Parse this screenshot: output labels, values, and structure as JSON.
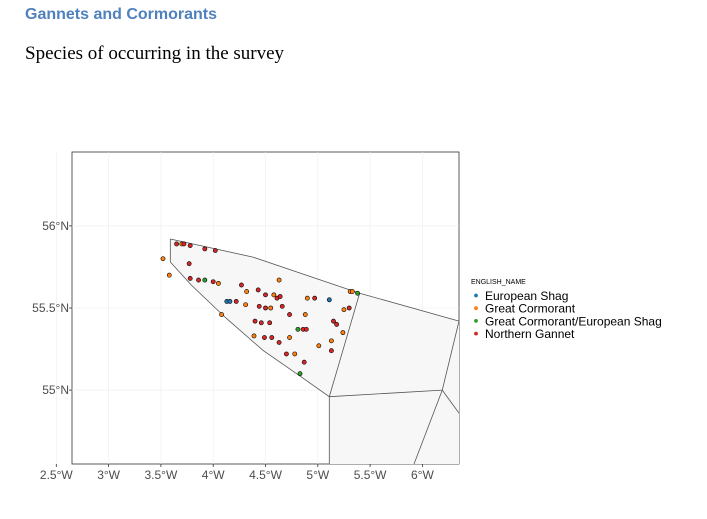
{
  "heading": "Gannets and Cormorants",
  "subheading": "Species of occurring in the survey",
  "chart_data": {
    "type": "scatter",
    "title": "",
    "xlabel": "",
    "ylabel": "",
    "grid": true,
    "xlim": [
      -2.65,
      -6.35
    ],
    "ylim": [
      54.55,
      56.45
    ],
    "x_ticks": [
      {
        "value": -2.5,
        "label": "2.5°W"
      },
      {
        "value": -3.0,
        "label": "3°W"
      },
      {
        "value": -3.5,
        "label": "3.5°W"
      },
      {
        "value": -4.0,
        "label": "4°W"
      },
      {
        "value": -4.5,
        "label": "4.5°W"
      },
      {
        "value": -5.0,
        "label": "5°W"
      },
      {
        "value": -5.5,
        "label": "5.5°W"
      },
      {
        "value": -6.0,
        "label": "6°W"
      }
    ],
    "y_ticks": [
      {
        "value": 56.0,
        "label": "56°N"
      },
      {
        "value": 55.5,
        "label": "55.5°N"
      },
      {
        "value": 55.0,
        "label": "55°N"
      }
    ],
    "polygons": [
      [
        [
          -3.59,
          55.92
        ],
        [
          -4.38,
          55.81
        ],
        [
          -5.4,
          55.59
        ],
        [
          -6.35,
          55.42
        ]
      ],
      [
        [
          -3.59,
          55.92
        ],
        [
          -3.59,
          55.78
        ],
        [
          -3.79,
          55.64
        ],
        [
          -4.12,
          55.44
        ],
        [
          -4.48,
          55.24
        ],
        [
          -4.82,
          55.09
        ],
        [
          -5.11,
          54.96
        ],
        [
          -5.4,
          55.59
        ]
      ],
      [
        [
          -5.11,
          54.96
        ],
        [
          -6.19,
          55.0
        ],
        [
          -6.35,
          55.42
        ]
      ],
      [
        [
          -5.11,
          54.96
        ],
        [
          -5.11,
          54.55
        ]
      ],
      [
        [
          -6.19,
          55.0
        ],
        [
          -5.92,
          54.55
        ]
      ],
      [
        [
          -6.19,
          55.0
        ],
        [
          -6.35,
          54.86
        ]
      ]
    ],
    "legend": {
      "title": "ENGLISH_NAME",
      "position": "right",
      "entries": [
        {
          "name": "European Shag",
          "color": "#1f78b4"
        },
        {
          "name": "Great Cormorant",
          "color": "#ff7f0e"
        },
        {
          "name": "Great Cormorant/European Shag",
          "color": "#2ca02c"
        },
        {
          "name": "Northern Gannet",
          "color": "#d62728"
        }
      ]
    },
    "series": [
      {
        "name": "European Shag",
        "color": "#1f78b4",
        "points": [
          {
            "x": -4.13,
            "y": 55.54
          },
          {
            "x": -4.16,
            "y": 55.54
          },
          {
            "x": -5.11,
            "y": 55.55
          }
        ]
      },
      {
        "name": "Great Cormorant",
        "color": "#ff7f0e",
        "points": [
          {
            "x": -3.52,
            "y": 55.8
          },
          {
            "x": -3.58,
            "y": 55.7
          },
          {
            "x": -3.7,
            "y": 55.89
          },
          {
            "x": -4.05,
            "y": 55.65
          },
          {
            "x": -4.08,
            "y": 55.46
          },
          {
            "x": -4.32,
            "y": 55.6
          },
          {
            "x": -4.58,
            "y": 55.58
          },
          {
            "x": -4.63,
            "y": 55.67
          },
          {
            "x": -4.55,
            "y": 55.5
          },
          {
            "x": -4.9,
            "y": 55.56
          },
          {
            "x": -4.88,
            "y": 55.46
          },
          {
            "x": -4.73,
            "y": 55.32
          },
          {
            "x": -4.78,
            "y": 55.22
          },
          {
            "x": -5.01,
            "y": 55.27
          },
          {
            "x": -5.13,
            "y": 55.3
          },
          {
            "x": -5.24,
            "y": 55.35
          },
          {
            "x": -5.31,
            "y": 55.6
          },
          {
            "x": -5.33,
            "y": 55.6
          },
          {
            "x": -5.25,
            "y": 55.49
          },
          {
            "x": -4.39,
            "y": 55.33
          },
          {
            "x": -4.31,
            "y": 55.52
          }
        ]
      },
      {
        "name": "Great Cormorant/European Shag",
        "color": "#2ca02c",
        "points": [
          {
            "x": -3.92,
            "y": 55.67
          },
          {
            "x": -4.81,
            "y": 55.37
          },
          {
            "x": -5.38,
            "y": 55.59
          },
          {
            "x": -4.83,
            "y": 55.1
          }
        ]
      },
      {
        "name": "Northern Gannet",
        "color": "#d62728",
        "points": [
          {
            "x": -3.65,
            "y": 55.89
          },
          {
            "x": -3.72,
            "y": 55.89
          },
          {
            "x": -3.78,
            "y": 55.88
          },
          {
            "x": -3.92,
            "y": 55.86
          },
          {
            "x": -4.02,
            "y": 55.85
          },
          {
            "x": -3.77,
            "y": 55.77
          },
          {
            "x": -3.78,
            "y": 55.68
          },
          {
            "x": -3.86,
            "y": 55.67
          },
          {
            "x": -4.0,
            "y": 55.66
          },
          {
            "x": -4.22,
            "y": 55.54
          },
          {
            "x": -4.27,
            "y": 55.64
          },
          {
            "x": -4.43,
            "y": 55.61
          },
          {
            "x": -4.5,
            "y": 55.58
          },
          {
            "x": -4.61,
            "y": 55.56
          },
          {
            "x": -4.64,
            "y": 55.57
          },
          {
            "x": -4.44,
            "y": 55.51
          },
          {
            "x": -4.5,
            "y": 55.5
          },
          {
            "x": -4.4,
            "y": 55.42
          },
          {
            "x": -4.46,
            "y": 55.41
          },
          {
            "x": -4.54,
            "y": 55.41
          },
          {
            "x": -4.66,
            "y": 55.51
          },
          {
            "x": -4.73,
            "y": 55.46
          },
          {
            "x": -4.86,
            "y": 55.37
          },
          {
            "x": -4.89,
            "y": 55.37
          },
          {
            "x": -4.49,
            "y": 55.32
          },
          {
            "x": -4.56,
            "y": 55.32
          },
          {
            "x": -4.63,
            "y": 55.29
          },
          {
            "x": -4.7,
            "y": 55.22
          },
          {
            "x": -4.87,
            "y": 55.17
          },
          {
            "x": -5.15,
            "y": 55.42
          },
          {
            "x": -5.18,
            "y": 55.4
          },
          {
            "x": -5.13,
            "y": 55.24
          },
          {
            "x": -5.3,
            "y": 55.5
          },
          {
            "x": -4.97,
            "y": 55.56
          }
        ]
      }
    ]
  }
}
